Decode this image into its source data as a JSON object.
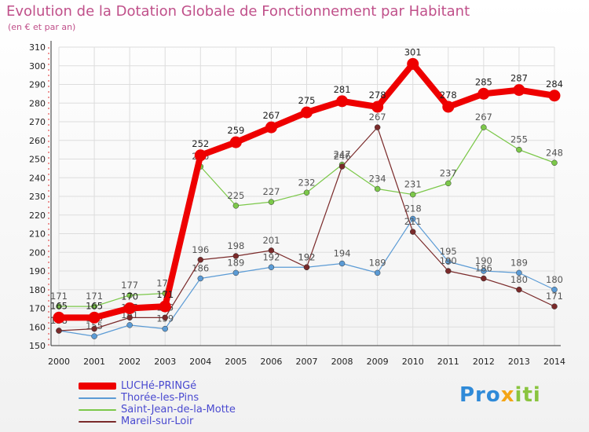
{
  "chart_data": {
    "type": "line",
    "title": "Evolution de la Dotation Globale de Fonctionnement par Habitant",
    "subtitle": "(en € et par an)",
    "x": [
      "2000",
      "2001",
      "2002",
      "2003",
      "2004",
      "2005",
      "2006",
      "2007",
      "2008",
      "2009",
      "2010",
      "2011",
      "2012",
      "2013",
      "2014"
    ],
    "ylim": [
      150,
      310
    ],
    "yticks": [
      160,
      170,
      180,
      190,
      200,
      210,
      220,
      230,
      240,
      250,
      260,
      270,
      280,
      290,
      300,
      310
    ],
    "ytick_labels": [
      "160",
      "170",
      "180",
      "190",
      "200",
      "210",
      "220",
      "230",
      "240",
      "250",
      "260",
      "270",
      "280",
      "290",
      "300",
      "310"
    ],
    "bottom_label": "150",
    "grid": true,
    "series": [
      {
        "name": "Thorée-les-Pins",
        "color": "#5b9bd5",
        "values": [
          158,
          155,
          161,
          159,
          186,
          189,
          192,
          192,
          194,
          189,
          218,
          195,
          190,
          189,
          180
        ],
        "labels": [
          "158",
          "155",
          "161",
          "159",
          "186",
          "189",
          "192",
          "192",
          "194",
          "189",
          "218",
          "195",
          "190",
          "189",
          "180"
        ]
      },
      {
        "name": "Saint-Jean-de-la-Motte",
        "color": "#7cc84a",
        "values": [
          171,
          171,
          177,
          178,
          246,
          225,
          227,
          232,
          247,
          234,
          231,
          237,
          267,
          255,
          248
        ],
        "labels": [
          "171",
          "171",
          "177",
          "178",
          "246",
          "225",
          "227",
          "232",
          "247",
          "234",
          "231",
          "237",
          "267",
          "255",
          "248"
        ]
      },
      {
        "name": "Mareil-sur-Loir",
        "color": "#7a2a2a",
        "values": [
          158,
          159,
          165,
          165,
          196,
          198,
          201,
          192,
          246,
          267,
          211,
          190,
          186,
          180,
          171
        ],
        "labels": [
          "158",
          "159",
          "165",
          "165",
          "196",
          "198",
          "201",
          "192",
          "246",
          "267",
          "211",
          "190",
          "186",
          "180",
          "171"
        ]
      },
      {
        "name": "LUCHé-PRINGé",
        "color": "#ee0000",
        "values": [
          165,
          165,
          170,
          171,
          252,
          259,
          267,
          275,
          281,
          278,
          301,
          278,
          285,
          287,
          284
        ],
        "labels": [
          "165",
          "165",
          "170",
          "171",
          "252",
          "259",
          "267",
          "275",
          "281",
          "278",
          "301",
          "278",
          "285",
          "287",
          "284"
        ]
      }
    ],
    "legend_order": [
      "LUCHé-PRINGé",
      "Thorée-les-Pins",
      "Saint-Jean-de-la-Motte",
      "Mareil-sur-Loir"
    ],
    "legend_position": "bottom-left"
  },
  "logo": {
    "part1": "Pro",
    "part2": "x",
    "part3": "iti"
  }
}
